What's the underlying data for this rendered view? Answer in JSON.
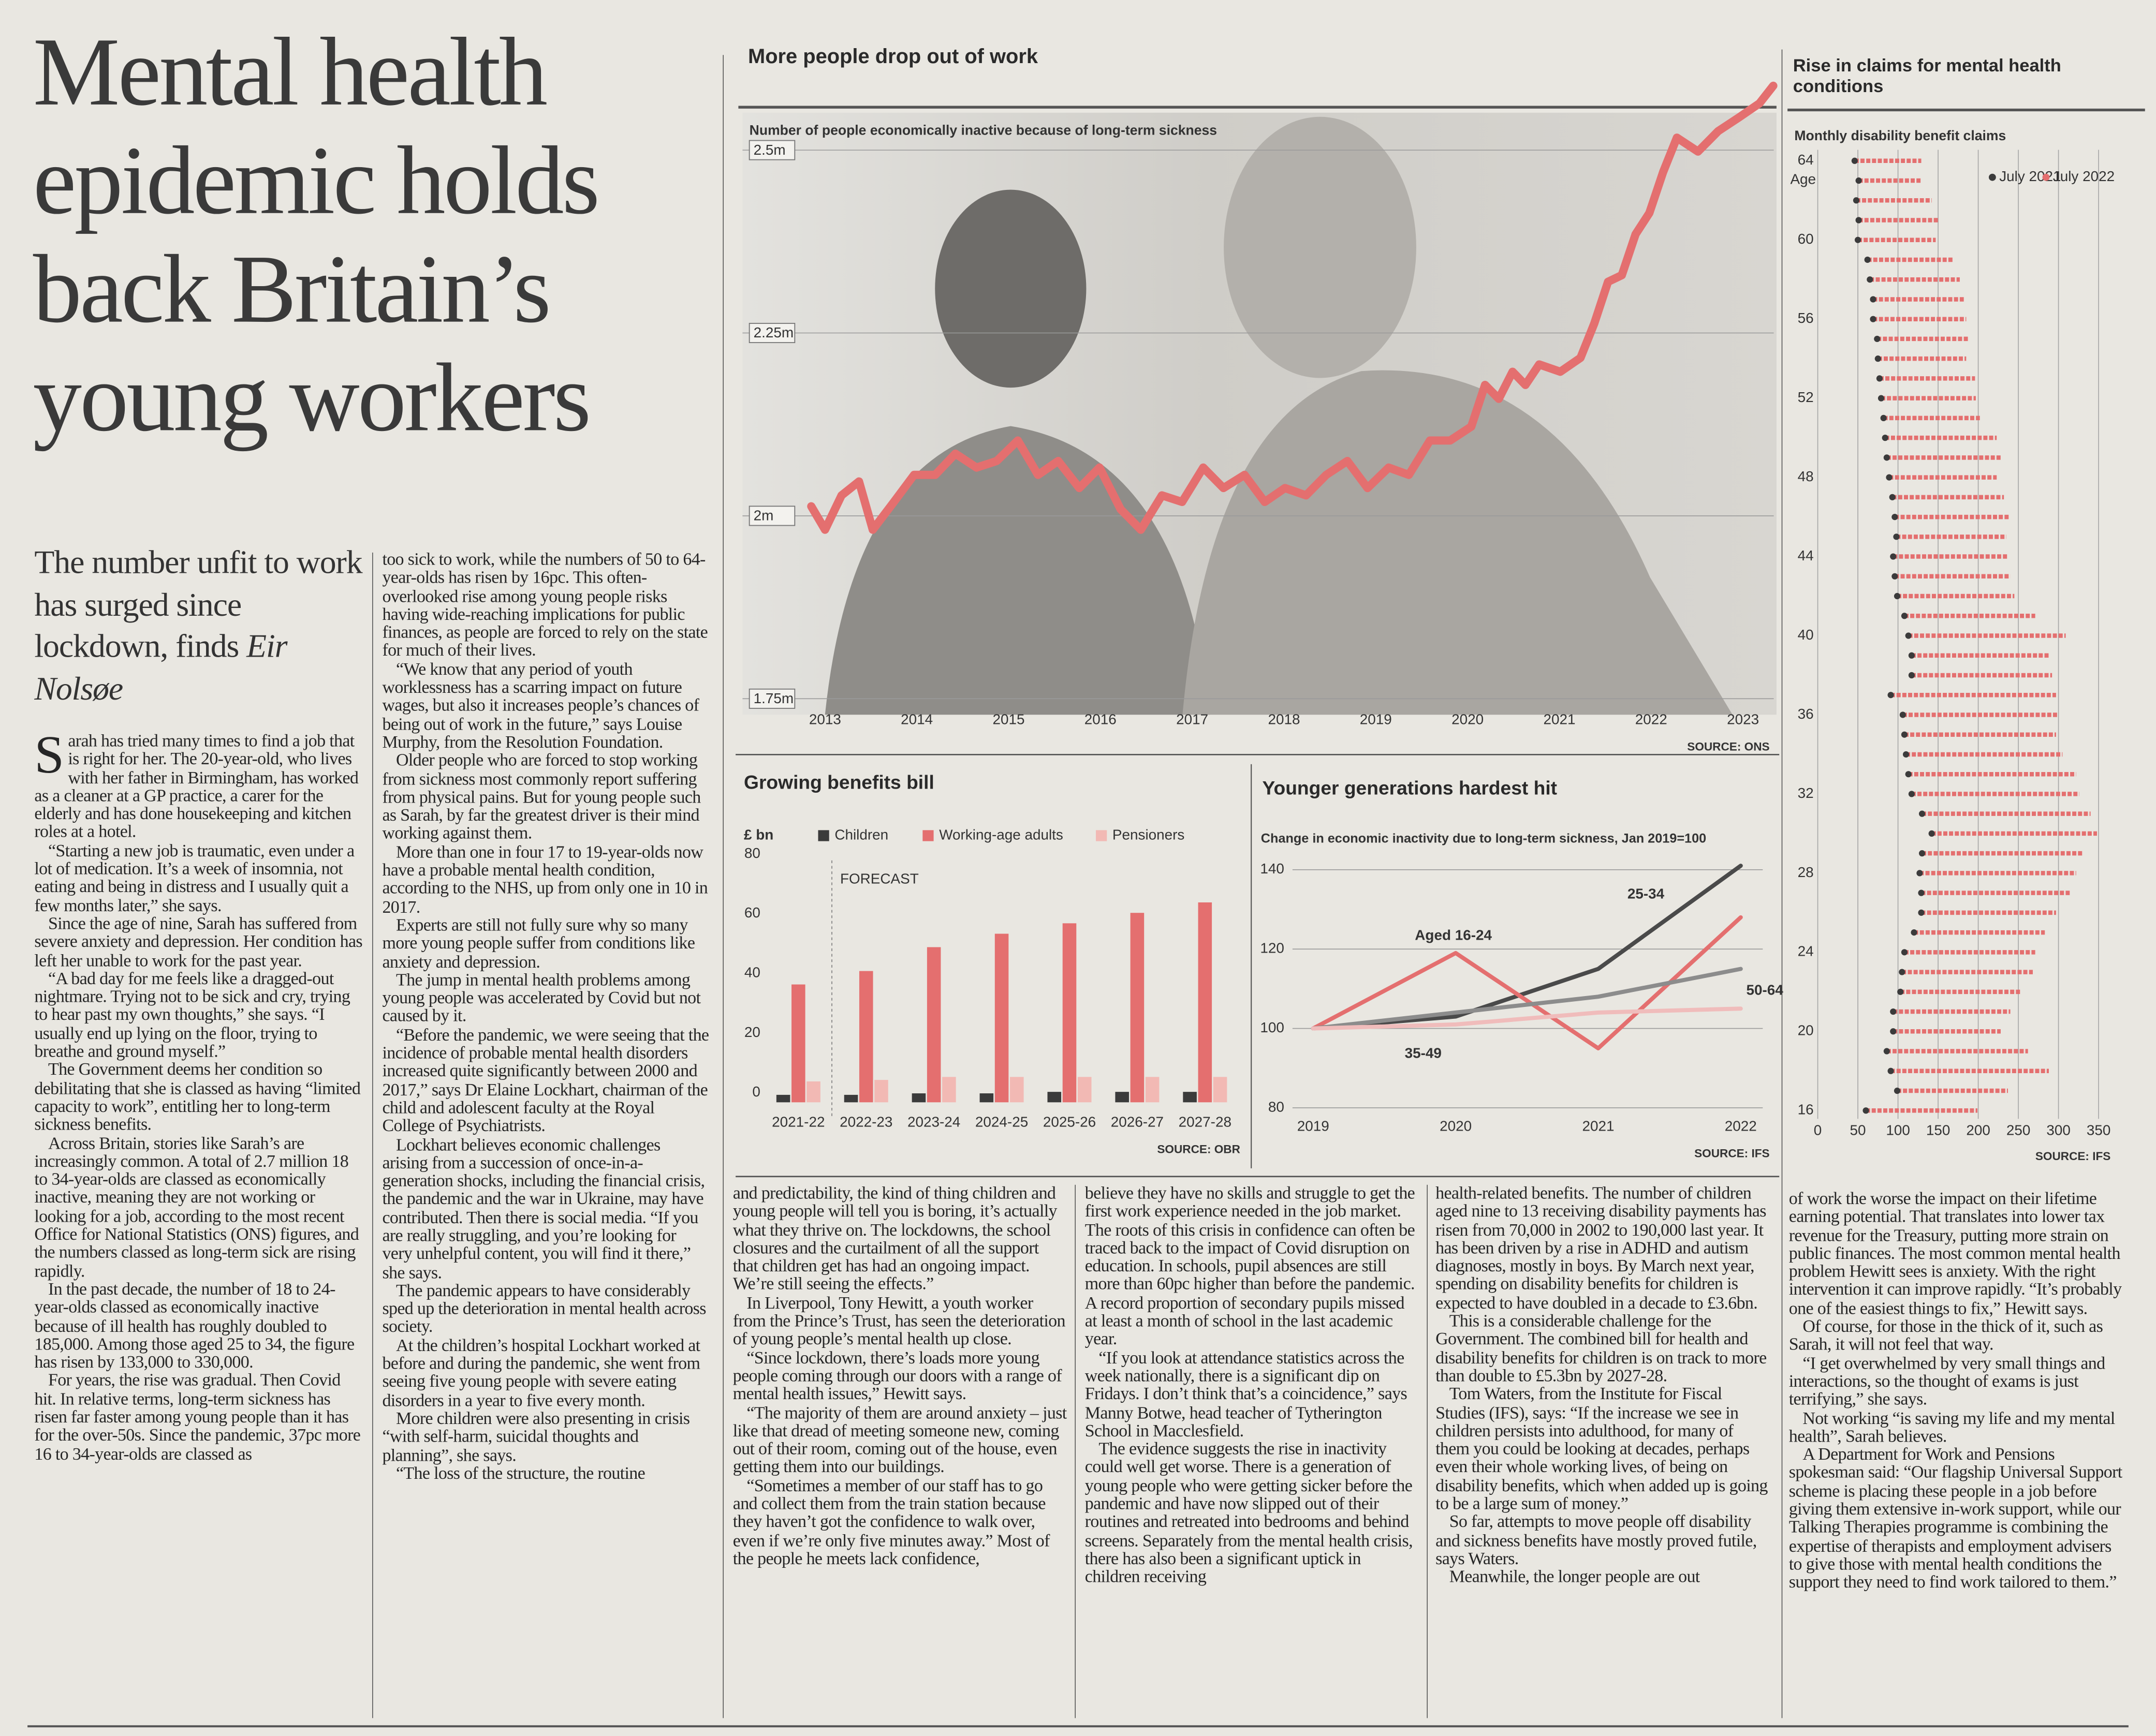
{
  "headline": "Mental health epidemic holds back Britain’s young workers",
  "standfirst": {
    "text": "The number unfit to work has surged since lockdown, finds",
    "byline": "Eir Nolsøe"
  },
  "article": {
    "columns": [
      [
        "Sarah has tried many times to find a job that is right for her. The 20-year-old, who lives with her father in Birmingham, has worked as a cleaner at a GP practice, a carer for the elderly and has done housekeeping and kitchen roles at a hotel.",
        "“Starting a new job is traumatic, even under a lot of medication. It’s a week of insomnia, not eating and being in distress and I usually quit a few months later,” she says.",
        "Since the age of nine, Sarah has suffered from severe anxiety and depression. Her condition has left her unable to work for the past year.",
        "“A bad day for me feels like a dragged-out nightmare. Trying not to be sick and cry, trying to hear past my own thoughts,” she says. “I usually end up lying on the floor, trying to breathe and ground myself.”",
        "The Government deems her condition so debilitating that she is classed as having “limited capacity to work”, entitling her to long-term sickness benefits.",
        "Across Britain, stories like Sarah’s are increasingly common. A total of 2.7 million 18 to 34-year-olds are classed as economically inactive, meaning they are not working or looking for a job, according to the most recent Office for National Statistics (ONS) figures, and the numbers classed as long-term sick are rising rapidly.",
        "In the past decade, the number of 18 to 24-year-olds classed as economically inactive because of ill health has roughly doubled to 185,000. Among those aged 25 to 34, the figure has risen by 133,000 to 330,000.",
        "For years, the rise was gradual. Then Covid hit. In relative terms, long-term sickness has risen far faster among young people than it has for the over-50s. Since the pandemic, 37pc more 16 to 34-year-olds are classed as"
      ],
      [
        "too sick to work, while the numbers of 50 to 64-year-olds has risen by 16pc. This often-overlooked rise among young people risks having wide-reaching implications for public finances, as people are forced to rely on the state for much of their lives.",
        "“We know that any period of youth worklessness has a scarring impact on future wages, but also it increases people’s chances of being out of work in the future,” says Louise Murphy, from the Resolution Foundation.",
        "Older people who are forced to stop working from sickness most commonly report suffering from physical pains. But for young people such as Sarah, by far the greatest driver is their mind working against them.",
        "More than one in four 17 to 19-year-olds now have a probable mental health condition, according to the NHS, up from only one in 10 in 2017.",
        "Experts are still not fully sure why so many more young people suffer from conditions like anxiety and depression.",
        "The jump in mental health problems among young people was accelerated by Covid but not caused by it.",
        "“Before the pandemic, we were seeing that the incidence of probable mental health disorders increased quite significantly between 2000 and 2017,” says Dr Elaine Lockhart, chairman of the child and adolescent faculty at the Royal College of Psychiatrists.",
        "Lockhart believes economic challenges arising from a succession of once-in-a-generation shocks, including the financial crisis, the pandemic and the war in Ukraine, may have contributed. Then there is social media. “If you are really struggling, and you’re looking for very unhelpful content, you will find it there,” she says.",
        "The pandemic appears to have considerably sped up the deterioration in mental health across society.",
        "At the children’s hospital Lockhart worked at before and during the pandemic, she went from seeing five young people with severe eating disorders in a year to five every month.",
        "More children were also presenting in crisis “with self-harm, suicidal thoughts and planning”, she says.",
        "“The loss of the structure, the routine"
      ],
      [
        "and predictability, the kind of thing children and young people will tell you is boring, it’s actually what they thrive on. The lockdowns, the school closures and the curtailment of all the support that children get has had an ongoing impact. We’re still seeing the effects.”",
        "In Liverpool, Tony Hewitt, a youth worker from the Prince’s Trust, has seen the deterioration of young people’s mental health up close.",
        "“Since lockdown, there’s loads more young people coming through our doors with a range of mental health issues,” Hewitt says.",
        "“The majority of them are around anxiety – just like that dread of meeting someone new, coming out of their room, coming out of the house, even getting them into our buildings.",
        "“Sometimes a member of our staff has to go and collect them from the train station because they haven’t got the confidence to walk over, even if we’re only five minutes away.” Most of the people he meets lack confidence,"
      ],
      [
        "believe they have no skills and struggle to get the first work experience needed in the job market. The roots of this crisis in confidence can often be traced back to the impact of Covid disruption on education. In schools, pupil absences are still more than 60pc higher than before the pandemic. A record proportion of secondary pupils missed at least a month of school in the last academic year.",
        "“If you look at attendance statistics across the week nationally, there is a significant dip on Fridays. I don’t think that’s a coincidence,” says Manny Botwe, head teacher of Tytherington School in Macclesfield.",
        "The evidence suggests the rise in inactivity could well get worse. There is a generation of young people who were getting sicker before the pandemic and have now slipped out of their routines and retreated into bedrooms and behind screens. Separately from the mental health crisis, there has also been a significant uptick in children receiving"
      ],
      [
        "health-related benefits. The number of children aged nine to 13 receiving disability payments has risen from 70,000 in 2002 to 190,000 last year. It has been driven by a rise in ADHD and autism diagnoses, mostly in boys. By March next year, spending on disability benefits for children is expected to have doubled in a decade to £3.6bn.",
        "This is a considerable challenge for the Government. The combined bill for health and disability benefits for children is on track to more than double to £5.3bn by 2027-28.",
        "Tom Waters, from the Institute for Fiscal Studies (IFS), says: “If the increase we see in children persists into adulthood, for many of them you could be looking at decades, perhaps even their whole working lives, of being on disability benefits, which when added up is going to be a large sum of money.”",
        "So far, attempts to move people off disability and sickness benefits have mostly proved futile, says Waters.",
        "Meanwhile, the longer people are out"
      ],
      [
        "of work the worse the impact on their lifetime earning potential. That translates into lower tax revenue for the Treasury, putting more strain on public finances. The most common mental health problem Hewitt sees is anxiety. With the right intervention it can improve rapidly. “It’s probably one of the easiest things to fix,” Hewitt says.",
        "Of course, for those in the thick of it, such as Sarah, it will not feel that way.",
        "“I get overwhelmed by very small things and interactions, so the thought of exams is just terrifying,” she says.",
        "Not working “is saving my life and my mental health”, Sarah believes.",
        "A Department for Work and Pensions spokesman said: “Our flagship Universal Support scheme is placing these people in a job before giving them extensive in-work support, while our Talking Therapies programme is combining the expertise of therapists and employment advisers to give those with mental health conditions the support they need to find work tailored to them.”"
      ]
    ]
  },
  "chart_data": [
    {
      "type": "line",
      "title": "More people drop out of work",
      "subtitle": "Number of people economically inactive because of long-term sickness",
      "source": "SOURCE: ONS",
      "x": [
        2012.85,
        2013,
        2013.18,
        2013.37,
        2013.52,
        2013.75,
        2013.97,
        2014.2,
        2014.42,
        2014.65,
        2014.87,
        2015.1,
        2015.32,
        2015.54,
        2015.77,
        2015.99,
        2016.22,
        2016.44,
        2016.67,
        2016.89,
        2017.12,
        2017.34,
        2017.57,
        2017.79,
        2018.01,
        2018.24,
        2018.46,
        2018.69,
        2018.91,
        2019.14,
        2019.36,
        2019.59,
        2019.81,
        2020.04,
        2020.19,
        2020.34,
        2020.49,
        2020.63,
        2020.78,
        2021.01,
        2021.23,
        2021.38,
        2021.53,
        2021.68,
        2021.83,
        2021.98,
        2022.13,
        2022.28,
        2022.51,
        2022.73,
        2022.96,
        2023.18,
        2023.33
      ],
      "series": [
        {
          "color": "#e46f6f",
          "values": [
            2.013,
            1.981,
            2.028,
            2.047,
            1.981,
            2.019,
            2.056,
            2.056,
            2.085,
            2.066,
            2.075,
            2.103,
            2.056,
            2.075,
            2.038,
            2.066,
            2.009,
            1.981,
            2.028,
            2.019,
            2.066,
            2.038,
            2.056,
            2.019,
            2.038,
            2.028,
            2.056,
            2.075,
            2.038,
            2.066,
            2.056,
            2.103,
            2.103,
            2.122,
            2.179,
            2.16,
            2.197,
            2.179,
            2.207,
            2.197,
            2.216,
            2.263,
            2.32,
            2.329,
            2.385,
            2.414,
            2.47,
            2.517,
            2.498,
            2.526,
            2.545,
            2.564,
            2.588
          ]
        }
      ],
      "xlim": [
        2012.7,
        2023.5
      ],
      "xticks": [
        2013,
        2014,
        2015,
        2016,
        2017,
        2018,
        2019,
        2020,
        2021,
        2022,
        2023
      ],
      "ylim": [
        1.73,
        2.6
      ],
      "yticks": [
        {
          "value": 1.75,
          "label": "1.75m"
        },
        {
          "value": 2,
          "label": "2m"
        },
        {
          "value": 2.25,
          "label": "2.25m"
        },
        {
          "value": 2.5,
          "label": "2.5m"
        }
      ],
      "grid": true
    },
    {
      "type": "bar",
      "title": "Growing benefits bill",
      "unit": "£ bn",
      "forecast_label": "FORECAST",
      "source": "SOURCE: OBR",
      "categories": [
        "2021-22",
        "2022-23",
        "2023-24",
        "2024-25",
        "2025-26",
        "2026-27",
        "2027-28"
      ],
      "series": [
        {
          "name": "Children",
          "color": "#3b3b3b",
          "values": [
            2.5,
            2.5,
            3,
            3,
            3.5,
            3.5,
            3.5
          ]
        },
        {
          "name": "Working-age adults",
          "color": "#e46f6f",
          "values": [
            39.5,
            44,
            52,
            56.5,
            60,
            63.5,
            67
          ]
        },
        {
          "name": "Pensioners",
          "color": "#f2b9b4",
          "values": [
            7,
            7.5,
            8.5,
            8.5,
            8.5,
            8.5,
            8.5
          ]
        }
      ],
      "ylim": [
        0,
        82
      ],
      "yticks": [
        0,
        20,
        40,
        60,
        80
      ],
      "grid": false
    },
    {
      "type": "line",
      "title": "Younger generations hardest hit",
      "subtitle": "Change in economic inactivity due to long-term sickness, Jan 2019=100",
      "source": "SOURCE: IFS",
      "x": [
        2019,
        2020,
        2021,
        2022
      ],
      "series": [
        {
          "name": "25-34",
          "color": "#4a4a4a",
          "values": [
            100,
            103,
            115,
            141
          ]
        },
        {
          "name": "Aged 16-24",
          "color": "#e46f6f",
          "values": [
            100,
            119,
            95,
            128
          ]
        },
        {
          "name": "50-64",
          "color": "#8c8c8c",
          "values": [
            100,
            104,
            108,
            115
          ]
        },
        {
          "name": "35-49",
          "color": "#f0bcbb",
          "values": [
            100,
            101,
            104,
            105
          ]
        }
      ],
      "xlim": [
        2019,
        2022
      ],
      "xticks": [
        2019,
        2020,
        2021,
        2022
      ],
      "ylim": [
        80,
        142
      ],
      "yticks": [
        80,
        100,
        120,
        140
      ],
      "grid": true
    },
    {
      "type": "dot",
      "title": "Rise in claims for mental health conditions",
      "subtitle": "Monthly disability benefit claims",
      "y_label": "Age",
      "source": "SOURCE: IFS",
      "categories": [
        64,
        null,
        null,
        null,
        60,
        null,
        null,
        null,
        56,
        null,
        null,
        null,
        52,
        null,
        null,
        null,
        48,
        null,
        null,
        null,
        44,
        null,
        null,
        null,
        40,
        null,
        null,
        null,
        36,
        null,
        null,
        null,
        32,
        null,
        null,
        null,
        28,
        null,
        null,
        null,
        24,
        null,
        null,
        null,
        20,
        null,
        null,
        null,
        16
      ],
      "series": [
        {
          "name": "July 2021",
          "color": "#3b3b3b",
          "values": [
            46,
            51,
            48,
            51,
            50,
            62,
            65,
            69,
            69,
            74,
            75,
            77,
            79,
            82,
            84,
            86,
            89,
            93,
            96,
            98,
            94,
            96,
            99,
            108,
            113,
            117,
            117,
            91,
            106,
            108,
            110,
            113,
            117,
            130,
            142,
            130,
            127,
            129,
            129,
            120,
            108,
            105,
            103,
            94,
            94,
            86,
            91,
            99,
            60
          ]
        },
        {
          "name": "July 2022",
          "color": "#e46f6f",
          "values": [
            129,
            130,
            142,
            151,
            147,
            168,
            177,
            182,
            185,
            189,
            185,
            196,
            197,
            202,
            223,
            228,
            223,
            232,
            238,
            235,
            237,
            240,
            245,
            271,
            309,
            288,
            292,
            297,
            300,
            297,
            305,
            322,
            326,
            340,
            348,
            331,
            322,
            314,
            297,
            283,
            271,
            268,
            254,
            240,
            228,
            262,
            288,
            237,
            199
          ]
        }
      ],
      "xlim": [
        0,
        365
      ],
      "xticks": [
        0,
        50,
        100,
        150,
        200,
        250,
        300,
        350
      ],
      "grid": true
    }
  ]
}
